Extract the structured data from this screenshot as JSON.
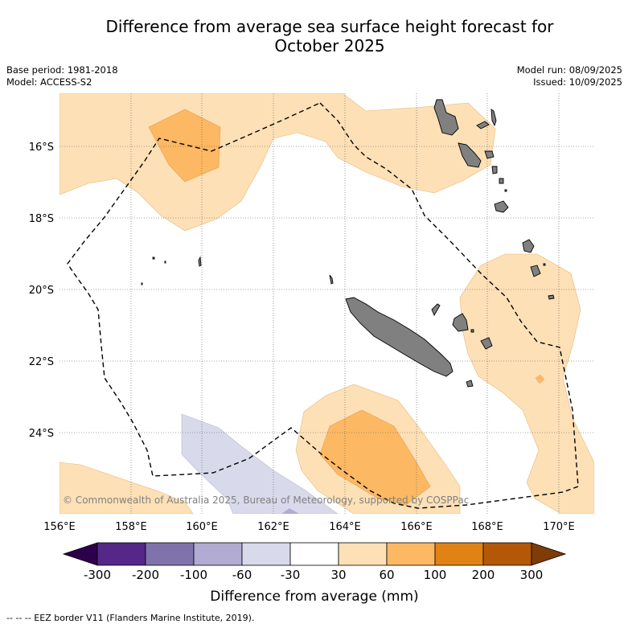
{
  "title": {
    "line1": "Difference from average sea surface height forecast for",
    "line2": "October 2025"
  },
  "meta_left": {
    "base_period": "Base period: 1981-2018",
    "model": "Model: ACCESS-S2"
  },
  "meta_right": {
    "model_run": "Model run: 08/09/2025",
    "issued": "Issued: 10/09/2025"
  },
  "map": {
    "lon_labels": [
      "156°E",
      "158°E",
      "160°E",
      "162°E",
      "164°E",
      "166°E",
      "168°E",
      "170°E"
    ],
    "lat_labels": [
      "16°S",
      "18°S",
      "20°S",
      "22°S",
      "24°S"
    ],
    "copyright": "© Commonwealth of Australia 2025, Bureau of Meteorology, supported by COSPPac",
    "eez_line_color": "#000000",
    "land_color": "#808080"
  },
  "colorbar": {
    "title": "Difference from average (mm)",
    "tick_labels": [
      "-300",
      "-200",
      "-100",
      "-60",
      "-30",
      "30",
      "60",
      "100",
      "200",
      "300"
    ],
    "colors": [
      "#2d004b",
      "#542788",
      "#8073ac",
      "#b2abd2",
      "#d8daeb",
      "#ffffff",
      "#fee0b6",
      "#fdb863",
      "#e08214",
      "#b35806",
      "#7f3b08"
    ]
  },
  "footer": {
    "legend": "--  --  -- EEZ border V11 (Flanders Marine Institute, 2019)."
  }
}
